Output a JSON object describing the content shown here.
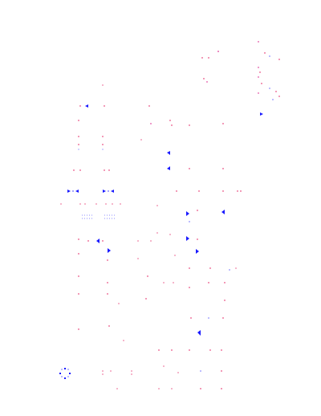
{
  "colors": {
    "background": "#ffffff",
    "accent_red": "#e0004a",
    "accent_blue": "#1a1aff",
    "accent_magenta": "#d6007a"
  },
  "diagram": {
    "style": "sparse dotted schematic drawing",
    "visible_text": []
  }
}
